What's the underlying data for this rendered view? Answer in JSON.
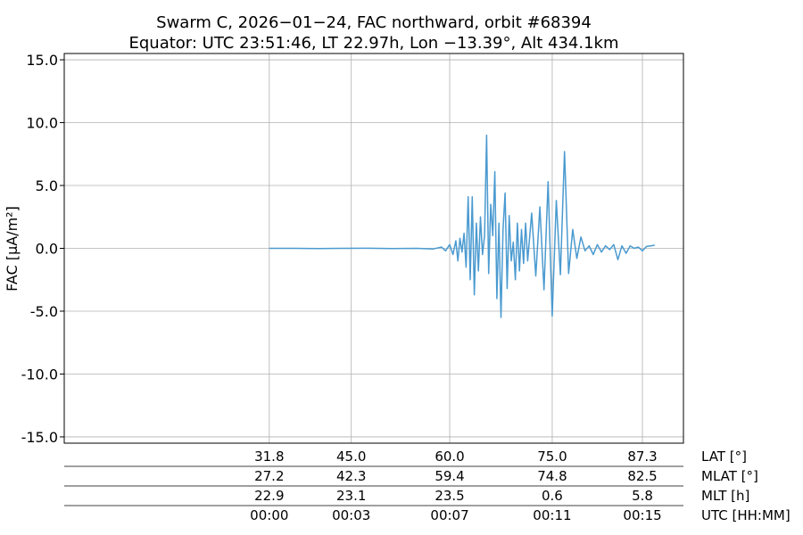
{
  "chart_data": {
    "type": "line",
    "title": "Swarm C, 2026−01−24, FAC northward, orbit #68394",
    "subtitle": "Equator: UTC 23:51:46, LT 22.97h, Lon −13.39°, Alt 434.1km",
    "ylabel": "FAC [μA/m²]",
    "ylim": [
      -15.5,
      15.5
    ],
    "yticks": [
      {
        "value": 15,
        "label": "15.0"
      },
      {
        "value": 10,
        "label": "10.0"
      },
      {
        "value": 5,
        "label": "5.0"
      },
      {
        "value": 0,
        "label": "0.0"
      },
      {
        "value": -5,
        "label": "-5.0"
      },
      {
        "value": -10,
        "label": "-10.0"
      },
      {
        "value": -15,
        "label": "-15.0"
      }
    ],
    "xlim": [
      -500,
      1010
    ],
    "grid": true,
    "xtick_rows": [
      {
        "label": "LAT [°]",
        "values": [
          "31.8",
          "45.0",
          "60.0",
          "75.0",
          "87.3"
        ]
      },
      {
        "label": "MLAT [°]",
        "values": [
          "27.2",
          "42.3",
          "59.4",
          "74.8",
          "82.5"
        ]
      },
      {
        "label": "MLT [h]",
        "values": [
          "22.9",
          "23.1",
          "23.5",
          "0.6",
          "5.8"
        ]
      },
      {
        "label": "UTC [HH:MM]",
        "values": [
          "00:00",
          "00:03",
          "00:07",
          "00:11",
          "00:15"
        ]
      }
    ],
    "xtick_seconds": [
      0,
      200,
      440,
      690,
      910
    ],
    "series": [
      {
        "color": "#4a9ad0",
        "x": [
          0,
          60,
          120,
          180,
          240,
          300,
          360,
          400,
          420,
          430,
          440,
          448,
          455,
          460,
          465,
          470,
          475,
          480,
          485,
          490,
          495,
          500,
          505,
          510,
          515,
          520,
          525,
          530,
          535,
          540,
          545,
          550,
          555,
          560,
          565,
          570,
          575,
          580,
          585,
          590,
          595,
          600,
          605,
          610,
          615,
          620,
          625,
          630,
          640,
          650,
          660,
          670,
          680,
          690,
          700,
          710,
          720,
          730,
          740,
          750,
          760,
          770,
          780,
          790,
          800,
          810,
          820,
          830,
          840,
          850,
          860,
          870,
          880,
          890,
          900,
          910,
          920,
          930,
          940
        ],
        "y": [
          0.0,
          0.0,
          -0.02,
          0.0,
          0.01,
          -0.02,
          0.0,
          -0.05,
          0.1,
          -0.2,
          0.3,
          -0.5,
          0.6,
          -1.0,
          0.8,
          -0.3,
          1.2,
          -1.5,
          4.1,
          -2.5,
          4.1,
          -3.7,
          2.0,
          -1.8,
          2.5,
          -0.5,
          1.0,
          9.0,
          -2.0,
          3.5,
          1.0,
          6.1,
          -4.0,
          2.0,
          -5.5,
          1.5,
          4.4,
          -3.2,
          2.6,
          -1.0,
          0.5,
          -2.5,
          2.0,
          -1.8,
          1.5,
          -1.2,
          2.0,
          -1.0,
          2.8,
          -2.2,
          3.3,
          -3.3,
          5.3,
          -5.4,
          3.8,
          -2.1,
          7.7,
          -2.0,
          1.5,
          -0.8,
          0.9,
          -0.2,
          0.2,
          -0.5,
          0.3,
          -0.3,
          0.2,
          -0.1,
          0.3,
          -0.9,
          0.2,
          -0.4,
          0.2,
          0.0,
          0.1,
          -0.2,
          0.15,
          0.2,
          0.25
        ]
      }
    ]
  }
}
